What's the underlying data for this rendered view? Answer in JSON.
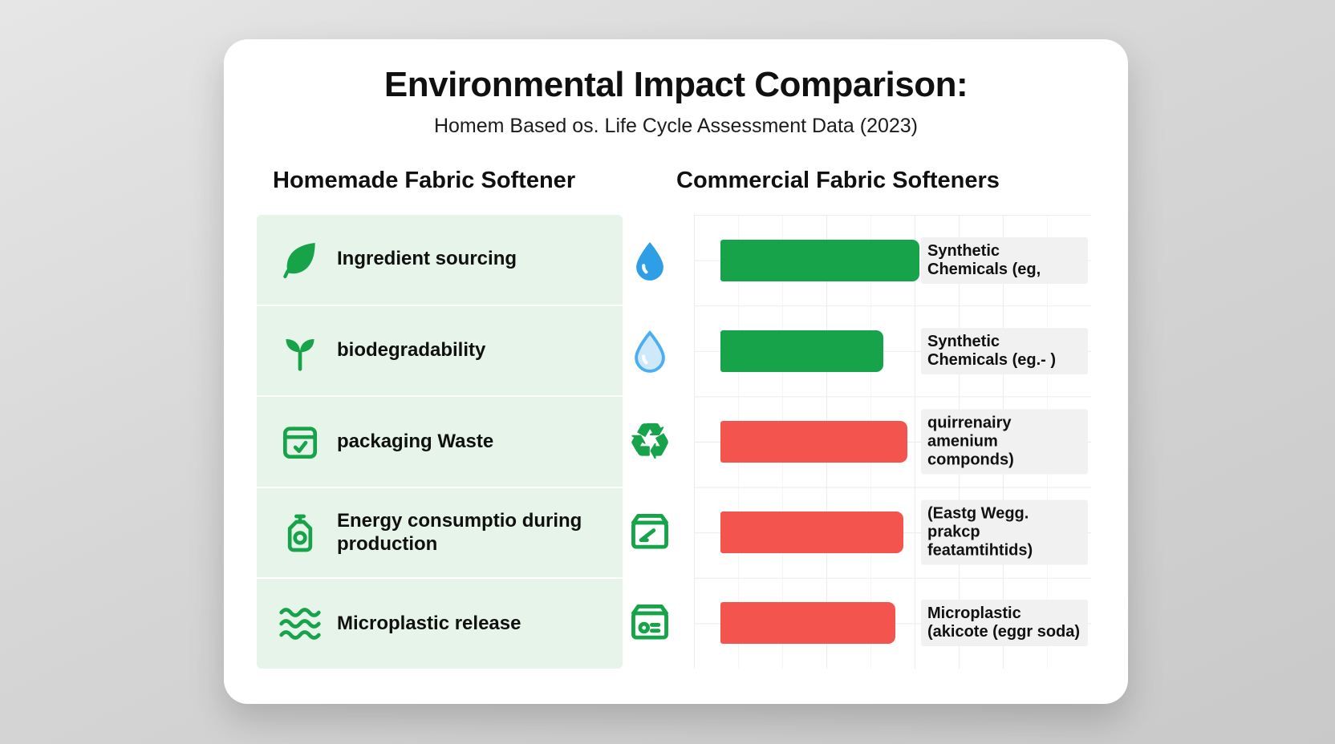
{
  "header": {
    "title": "Environmental Impact Comparison:",
    "subtitle": "Homem Based os. Life Cycle Assessment Data (2023)"
  },
  "columns": {
    "left": "Homemade Fabric Softener",
    "right": "Commercial Fabric Softeners"
  },
  "icons": {
    "recycle": "♻"
  },
  "colors": {
    "positive_bar": "#16a34a",
    "negative_bar": "#f4544e",
    "panel_green": "#e7f4ea",
    "label_box": "#f1f1f2",
    "drop_blue": "#2e9fe6",
    "drop_light_fill": "#cfe9fb"
  },
  "rows": [
    {
      "left_icon": "leaf-icon",
      "left_label": "Ingredient sourcing",
      "right_icon": "water-drop-icon",
      "bar_color": "#16a34a",
      "bar_pct": 50,
      "right_label": "Synthetic\nChemicals (eg,"
    },
    {
      "left_icon": "sprout-icon",
      "left_label": "biodegradability",
      "right_icon": "water-drop-outline-icon",
      "bar_color": "#16a34a",
      "bar_pct": 41,
      "right_label": "Synthetic\nChemicals (eg.- )"
    },
    {
      "left_icon": "package-check-icon",
      "left_label": "packaging Waste",
      "right_icon": "recycle-icon",
      "bar_color": "#f4544e",
      "bar_pct": 47,
      "right_label": "quirrenairy\namenium componds)"
    },
    {
      "left_icon": "detergent-bottle-icon",
      "left_label": "Energy consumptio during\nproduction",
      "right_icon": "package-icon",
      "bar_color": "#f4544e",
      "bar_pct": 46,
      "right_label": "(Eastg  Wegg.\nprakcp featamtihtids)"
    },
    {
      "left_icon": "waves-icon",
      "left_label": "Microplastic release",
      "right_icon": "package-box-icon",
      "bar_color": "#f4544e",
      "bar_pct": 44,
      "right_label": "Microplastic\n(akicote (eggr soda)"
    }
  ],
  "chart_data": {
    "type": "bar",
    "title": "Environmental Impact Comparison:",
    "subtitle": "Homem Based os. Life Cycle Assessment Data (2023)",
    "categories": [
      "Ingredient sourcing",
      "biodegradability",
      "packaging Waste",
      "Energy consumptio during production",
      "Microplastic release"
    ],
    "series": [
      {
        "name": "Commercial Fabric Softeners",
        "values": [
          50,
          41,
          47,
          46,
          44
        ],
        "unit": "relative bar length, % of grid width (estimated from pixels)",
        "colors": [
          "#16a34a",
          "#16a34a",
          "#f4544e",
          "#f4544e",
          "#f4544e"
        ],
        "bar_labels": [
          "Synthetic Chemicals (eg,",
          "Synthetic Chemicals (eg.- )",
          "quirrenairy amenium componds)",
          "(Eastg Wegg. prakcp featamtihtids)",
          "Microplastic (akicote (eggr soda)"
        ]
      }
    ],
    "legend_position": "none",
    "grid": true,
    "xlabel": "",
    "ylabel": ""
  }
}
